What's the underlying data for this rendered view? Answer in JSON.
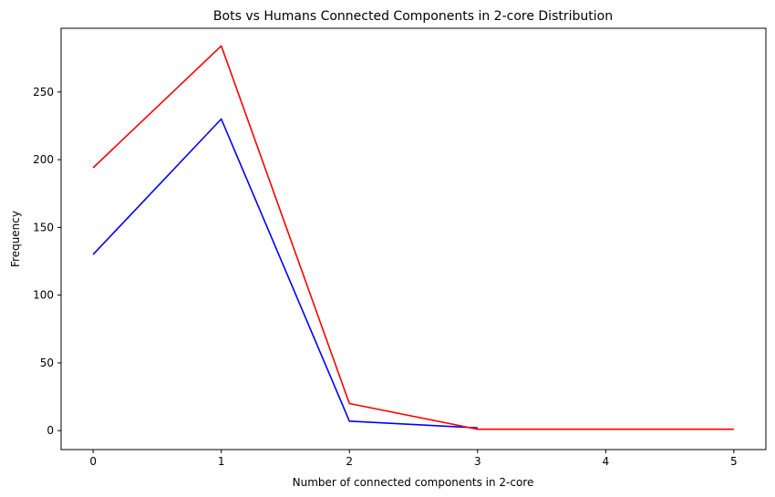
{
  "chart_data": {
    "type": "line",
    "title": "Bots vs Humans Connected Components in 2-core Distribution",
    "xlabel": "Number of connected components in 2-core",
    "ylabel": "Frequency",
    "xlim": [
      -0.25,
      5.25
    ],
    "ylim": [
      -14,
      297
    ],
    "xticks": [
      0,
      1,
      2,
      3,
      4,
      5
    ],
    "yticks": [
      0,
      50,
      100,
      150,
      200,
      250
    ],
    "grid": false,
    "series": [
      {
        "name": "blue",
        "color": "#0000ff",
        "x": [
          0,
          1,
          2,
          3
        ],
        "y": [
          130,
          230,
          7,
          2
        ]
      },
      {
        "name": "red",
        "color": "#ff0000",
        "x": [
          0,
          1,
          2,
          3,
          4,
          5
        ],
        "y": [
          194,
          284,
          20,
          1,
          1,
          1
        ]
      }
    ]
  }
}
